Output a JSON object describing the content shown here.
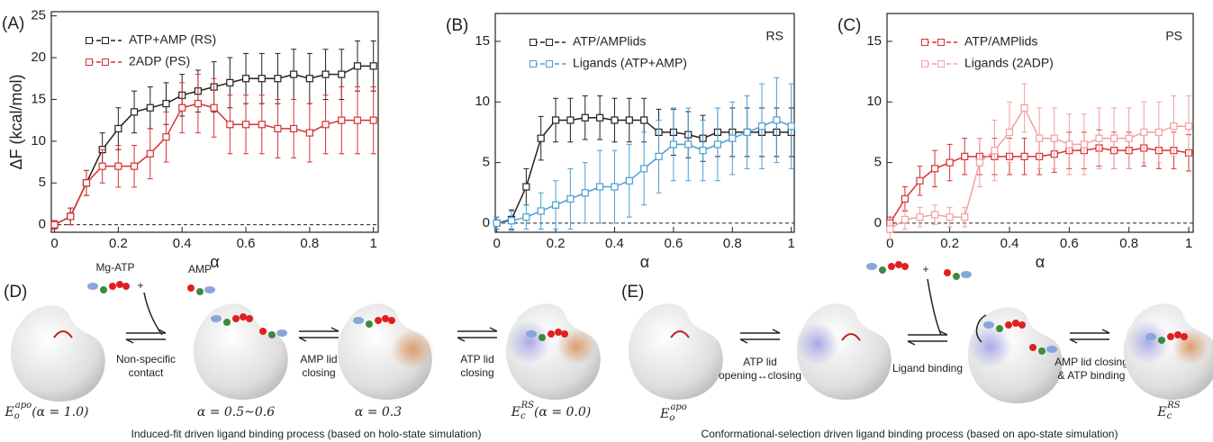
{
  "chart_data": [
    {
      "type": "line",
      "panel_label": "(A)",
      "ylabel": "ΔF (kcal/mol)",
      "xlabel": "α",
      "xlim": [
        -0.01,
        1.015
      ],
      "ylim": [
        -0.9,
        25.5
      ],
      "xticks": [
        0,
        0.2,
        0.4,
        0.6,
        0.8,
        1
      ],
      "yticks": [
        0,
        5,
        10,
        15,
        20,
        25
      ],
      "hline": 0,
      "x": [
        0,
        0.05,
        0.1,
        0.15,
        0.2,
        0.25,
        0.3,
        0.35,
        0.4,
        0.45,
        0.5,
        0.55,
        0.6,
        0.65,
        0.7,
        0.75,
        0.8,
        0.85,
        0.9,
        0.95,
        1
      ],
      "series": [
        {
          "name": "ATP+AMP (RS)",
          "color": "#222222",
          "values": [
            0,
            1,
            5,
            9,
            11.5,
            13.5,
            14,
            14.5,
            15.5,
            16,
            16.5,
            17,
            17.5,
            17.5,
            17.5,
            18,
            17.5,
            18,
            18,
            19,
            19
          ],
          "errors": [
            0.5,
            1,
            1.5,
            2,
            2.5,
            2.5,
            2.5,
            2.5,
            2.5,
            2.5,
            3,
            3,
            3,
            3,
            3,
            3,
            3,
            3,
            3,
            3,
            3
          ]
        },
        {
          "name": "2ADP (PS)",
          "color": "#d93030",
          "values": [
            0,
            1,
            5,
            7,
            7,
            7,
            8.5,
            10.5,
            14,
            14.5,
            14,
            12,
            12,
            12,
            11.5,
            11.5,
            11,
            12,
            12.5,
            12.5,
            12.5
          ],
          "errors": [
            0.5,
            1,
            1.5,
            2,
            2.5,
            2.5,
            3,
            3,
            3,
            3.5,
            3.5,
            3.5,
            3.5,
            3.5,
            3.5,
            3.5,
            3.5,
            3.5,
            4,
            4,
            4
          ]
        }
      ]
    },
    {
      "type": "line",
      "panel_label": "(B)",
      "annotation": "RS",
      "xlabel": "α",
      "xlim": [
        -0.005,
        1.01
      ],
      "ylim": [
        -0.75,
        17.3
      ],
      "xticks": [
        0,
        0.2,
        0.4,
        0.6,
        0.8,
        1
      ],
      "yticks": [
        0,
        5,
        10,
        15
      ],
      "hline": 0,
      "x": [
        0,
        0.05,
        0.1,
        0.15,
        0.2,
        0.25,
        0.3,
        0.35,
        0.4,
        0.45,
        0.5,
        0.55,
        0.6,
        0.65,
        0.7,
        0.75,
        0.8,
        0.85,
        0.9,
        0.95,
        1
      ],
      "series": [
        {
          "name": "ATP/AMPlids",
          "color": "#222222",
          "values": [
            0,
            0.3,
            3,
            7,
            8.5,
            8.5,
            8.7,
            8.7,
            8.5,
            8.5,
            8.5,
            7.5,
            7.5,
            7.3,
            7,
            7.5,
            7.5,
            7.5,
            7.5,
            7.5,
            7.5
          ],
          "errors": [
            0.5,
            0.8,
            1.5,
            1.8,
            1.8,
            1.8,
            1.8,
            1.8,
            1.8,
            1.8,
            1.8,
            1.9,
            1.9,
            1.9,
            1.9,
            2,
            2,
            2,
            2,
            2,
            2
          ]
        },
        {
          "name": "Ligands (ATP+AMP)",
          "color": "#4a9fd4",
          "values": [
            0,
            0.2,
            0.5,
            1,
            1.5,
            2,
            2.5,
            3,
            3,
            3.5,
            4.5,
            5.5,
            6.5,
            6.5,
            6,
            6.5,
            7,
            7.5,
            8,
            8.5,
            8
          ],
          "errors": [
            0.5,
            0.8,
            1,
            1.5,
            2,
            2.5,
            2.5,
            3,
            3,
            3,
            3,
            3,
            3,
            3,
            2.5,
            3,
            3,
            3,
            3.5,
            3.5,
            3.5
          ]
        }
      ]
    },
    {
      "type": "line",
      "panel_label": "(C)",
      "annotation": "PS",
      "xlabel": "α",
      "xlim": [
        -0.01,
        1.015
      ],
      "ylim": [
        -0.75,
        17.3
      ],
      "xticks": [
        0,
        0.2,
        0.4,
        0.6,
        0.8,
        1
      ],
      "yticks": [
        0,
        5,
        10,
        15
      ],
      "hline": 0,
      "x": [
        0,
        0.05,
        0.1,
        0.15,
        0.2,
        0.25,
        0.3,
        0.35,
        0.4,
        0.45,
        0.5,
        0.55,
        0.6,
        0.65,
        0.7,
        0.75,
        0.8,
        0.85,
        0.9,
        0.95,
        1
      ],
      "series": [
        {
          "name": "ATP/AMPlids",
          "color": "#d93030",
          "values": [
            0,
            2,
            3.5,
            4.5,
            5,
            5.5,
            5.5,
            5.5,
            5.5,
            5.5,
            5.5,
            5.7,
            6,
            6,
            6.2,
            6,
            6,
            6.2,
            6,
            6,
            5.8
          ],
          "errors": [
            0.5,
            1,
            1.2,
            1.5,
            1.5,
            1.5,
            1.5,
            1.5,
            1.5,
            1.5,
            1.5,
            1.5,
            1.5,
            1.5,
            1.5,
            1.5,
            1.5,
            1.5,
            1.5,
            1.5,
            1.5
          ]
        },
        {
          "name": "Ligands (2ADP)",
          "color": "#f2a0a0",
          "values": [
            -0.5,
            0.3,
            0.5,
            0.7,
            0.5,
            0.5,
            5,
            6,
            7.5,
            9.5,
            7,
            7,
            6.5,
            6.5,
            7,
            7,
            7,
            7.5,
            7.5,
            8,
            8
          ],
          "errors": [
            0.8,
            0.8,
            0.8,
            0.8,
            0.8,
            0.8,
            2,
            2.5,
            2.5,
            2,
            2.5,
            2.5,
            2.5,
            2.5,
            2.5,
            2.5,
            2.5,
            2.5,
            2.5,
            2.5,
            2.5
          ]
        }
      ]
    }
  ],
  "schemes": [
    {
      "label": "(D)",
      "ligand1": "Mg-ATP",
      "ligand2": "AMP",
      "plus": "+",
      "steps": [
        [
          "Non-specific",
          "contact"
        ],
        [
          "AMP lid",
          "closing"
        ],
        [
          "ATP lid",
          "closing"
        ]
      ],
      "states": [
        {
          "base": "E",
          "sub": "o",
          "sup": "apo",
          "tail": "(α = 1.0)"
        },
        {
          "tail": "α = 0.5~0.6"
        },
        {
          "tail": "α = 0.3"
        },
        {
          "base": "E",
          "sub": "c",
          "sup": "RS",
          "tail": "(α = 0.0)"
        }
      ],
      "caption": "Induced-fit driven ligand binding process (based on holo-state simulation)"
    },
    {
      "label": "(E)",
      "plus": "+",
      "steps": [
        [
          "ATP lid",
          "opening↔closing"
        ],
        [
          "Ligand binding"
        ],
        [
          "AMP lid closing",
          "& ATP binding"
        ]
      ],
      "states": [
        {
          "base": "E",
          "sub": "o",
          "sup": "apo"
        },
        {
          "base": "E",
          "sub": "c",
          "sup": "RS"
        }
      ],
      "caption": "Conformational-selection driven ligand binding process (based on apo-state simulation)"
    }
  ]
}
